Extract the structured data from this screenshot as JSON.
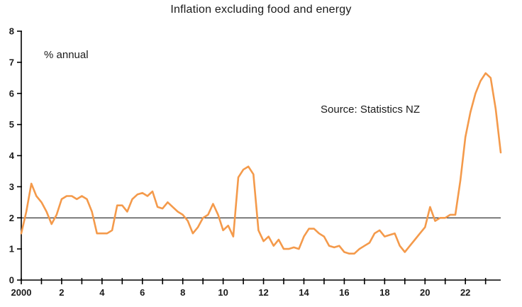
{
  "chart_data": {
    "type": "line",
    "title": "Inflation excluding food and energy",
    "unit_label": "% annual",
    "source_label": "Source: Statistics NZ",
    "xlabel": "",
    "ylabel": "% annual",
    "xlim": [
      2000,
      2023.75
    ],
    "ylim": [
      0,
      8
    ],
    "grid": false,
    "legend": "none",
    "y_ticks": [
      0,
      1,
      2,
      3,
      4,
      5,
      6,
      7,
      8
    ],
    "x_tick_interval": 1,
    "x_label_interval": 2,
    "x_tick_labels": [
      "2000",
      "2",
      "4",
      "6",
      "8",
      "10",
      "12",
      "14",
      "16",
      "18",
      "20",
      "22"
    ],
    "reference_line": {
      "y": 2,
      "color": "#000000"
    },
    "x_start": 2000,
    "x_step": 0.25,
    "series": [
      {
        "name": "CPI inflation excluding food and energy (% annual)",
        "color": "#F49A4B",
        "values": [
          1.5,
          2.2,
          3.1,
          2.7,
          2.5,
          2.2,
          1.8,
          2.1,
          2.6,
          2.7,
          2.7,
          2.6,
          2.7,
          2.6,
          2.2,
          1.5,
          1.5,
          1.5,
          1.6,
          2.4,
          2.4,
          2.2,
          2.6,
          2.75,
          2.8,
          2.7,
          2.85,
          2.35,
          2.3,
          2.5,
          2.35,
          2.2,
          2.1,
          1.9,
          1.5,
          1.7,
          2.0,
          2.1,
          2.45,
          2.1,
          1.6,
          1.75,
          1.4,
          3.3,
          3.55,
          3.65,
          3.4,
          1.6,
          1.25,
          1.4,
          1.1,
          1.3,
          1.0,
          1.0,
          1.05,
          1.0,
          1.4,
          1.65,
          1.65,
          1.5,
          1.4,
          1.1,
          1.05,
          1.1,
          0.9,
          0.85,
          0.85,
          1.0,
          1.1,
          1.2,
          1.5,
          1.6,
          1.4,
          1.45,
          1.5,
          1.1,
          0.9,
          1.1,
          1.3,
          1.5,
          1.7,
          2.35,
          1.9,
          2.0,
          2.0,
          2.1,
          2.1,
          3.2,
          4.6,
          5.4,
          6.0,
          6.4,
          6.65,
          6.5,
          5.5,
          4.1
        ]
      }
    ]
  },
  "colors": {
    "line": "#F49A4B",
    "axis": "#000000",
    "text": "#1a1a1a",
    "background": "#ffffff"
  }
}
